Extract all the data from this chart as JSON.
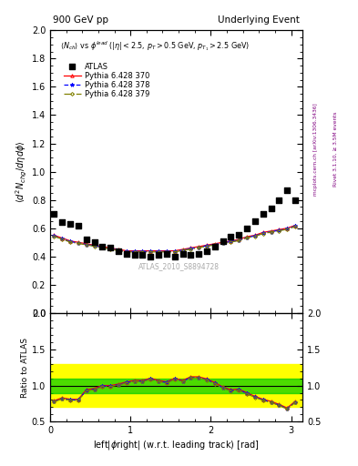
{
  "title_left": "900 GeV pp",
  "title_right": "Underlying Event",
  "annotation": "ATLAS_2010_S8894728",
  "subtitle": "$\\langle N_{ch}\\rangle$ vs $\\phi^{lead}$ ($|\\eta| < 2.5$, $p_T > 0.5$ GeV, $p_{T_1} > 2.5$ GeV)",
  "ylabel_main": "$\\langle d^2 N_{chg}/d\\eta d\\phi\\rangle$",
  "ylabel_ratio": "Ratio to ATLAS",
  "xlabel": "left|$\\phi$right| (w.r.t. leading track) [rad]",
  "right_label": "Rivet 3.1.10, ≥ 3.5M events",
  "right_label2": "mcplots.cern.ch [arXiv:1306.3436]",
  "xlim": [
    0,
    3.14159
  ],
  "ylim_main": [
    0.0,
    2.0
  ],
  "ylim_ratio": [
    0.5,
    2.0
  ],
  "atlas_x": [
    0.05,
    0.15,
    0.25,
    0.35,
    0.45,
    0.55,
    0.65,
    0.75,
    0.85,
    0.95,
    1.05,
    1.15,
    1.25,
    1.35,
    1.45,
    1.55,
    1.65,
    1.75,
    1.85,
    1.95,
    2.05,
    2.15,
    2.25,
    2.35,
    2.45,
    2.55,
    2.65,
    2.75,
    2.85,
    2.95,
    3.05
  ],
  "atlas_y": [
    0.7,
    0.64,
    0.63,
    0.62,
    0.52,
    0.5,
    0.47,
    0.46,
    0.44,
    0.42,
    0.41,
    0.41,
    0.4,
    0.41,
    0.42,
    0.4,
    0.42,
    0.41,
    0.42,
    0.44,
    0.47,
    0.51,
    0.54,
    0.55,
    0.6,
    0.65,
    0.7,
    0.74,
    0.8,
    0.87,
    0.8
  ],
  "py370_x": [
    0.05,
    0.15,
    0.25,
    0.35,
    0.45,
    0.55,
    0.65,
    0.75,
    0.85,
    0.95,
    1.05,
    1.15,
    1.25,
    1.35,
    1.45,
    1.55,
    1.65,
    1.75,
    1.85,
    1.95,
    2.05,
    2.15,
    2.25,
    2.35,
    2.45,
    2.55,
    2.65,
    2.75,
    2.85,
    2.95,
    3.05
  ],
  "py370_y": [
    0.55,
    0.53,
    0.51,
    0.5,
    0.49,
    0.48,
    0.47,
    0.46,
    0.45,
    0.44,
    0.44,
    0.44,
    0.44,
    0.44,
    0.44,
    0.44,
    0.45,
    0.46,
    0.47,
    0.48,
    0.49,
    0.5,
    0.51,
    0.52,
    0.54,
    0.55,
    0.57,
    0.58,
    0.59,
    0.6,
    0.62
  ],
  "py378_x": [
    0.05,
    0.15,
    0.25,
    0.35,
    0.45,
    0.55,
    0.65,
    0.75,
    0.85,
    0.95,
    1.05,
    1.15,
    1.25,
    1.35,
    1.45,
    1.55,
    1.65,
    1.75,
    1.85,
    1.95,
    2.05,
    2.15,
    2.25,
    2.35,
    2.45,
    2.55,
    2.65,
    2.75,
    2.85,
    2.95,
    3.05
  ],
  "py378_y": [
    0.545,
    0.525,
    0.505,
    0.495,
    0.485,
    0.475,
    0.465,
    0.455,
    0.445,
    0.435,
    0.435,
    0.435,
    0.435,
    0.435,
    0.435,
    0.435,
    0.445,
    0.455,
    0.465,
    0.475,
    0.485,
    0.495,
    0.505,
    0.515,
    0.535,
    0.545,
    0.565,
    0.575,
    0.585,
    0.595,
    0.615
  ],
  "py379_x": [
    0.05,
    0.15,
    0.25,
    0.35,
    0.45,
    0.55,
    0.65,
    0.75,
    0.85,
    0.95,
    1.05,
    1.15,
    1.25,
    1.35,
    1.45,
    1.55,
    1.65,
    1.75,
    1.85,
    1.95,
    2.05,
    2.15,
    2.25,
    2.35,
    2.45,
    2.55,
    2.65,
    2.75,
    2.85,
    2.95,
    3.05
  ],
  "py379_y": [
    0.542,
    0.522,
    0.502,
    0.492,
    0.482,
    0.472,
    0.462,
    0.452,
    0.442,
    0.432,
    0.432,
    0.432,
    0.432,
    0.432,
    0.432,
    0.432,
    0.442,
    0.452,
    0.462,
    0.472,
    0.482,
    0.492,
    0.502,
    0.512,
    0.532,
    0.542,
    0.562,
    0.572,
    0.582,
    0.592,
    0.612
  ],
  "ratio370_y": [
    0.79,
    0.83,
    0.81,
    0.81,
    0.94,
    0.96,
    1.0,
    1.0,
    1.02,
    1.05,
    1.07,
    1.07,
    1.1,
    1.07,
    1.05,
    1.1,
    1.07,
    1.12,
    1.12,
    1.09,
    1.04,
    0.98,
    0.94,
    0.95,
    0.9,
    0.85,
    0.81,
    0.78,
    0.74,
    0.69,
    0.78
  ],
  "ratio378_y": [
    0.78,
    0.82,
    0.8,
    0.8,
    0.93,
    0.95,
    0.99,
    0.99,
    1.01,
    1.04,
    1.06,
    1.06,
    1.09,
    1.06,
    1.04,
    1.09,
    1.06,
    1.11,
    1.11,
    1.08,
    1.03,
    0.97,
    0.93,
    0.94,
    0.89,
    0.84,
    0.8,
    0.77,
    0.73,
    0.68,
    0.77
  ],
  "ratio379_y": [
    0.775,
    0.815,
    0.795,
    0.795,
    0.925,
    0.945,
    0.985,
    0.985,
    1.005,
    1.035,
    1.055,
    1.055,
    1.085,
    1.055,
    1.035,
    1.085,
    1.055,
    1.105,
    1.105,
    1.075,
    1.025,
    0.965,
    0.925,
    0.935,
    0.885,
    0.835,
    0.795,
    0.765,
    0.725,
    0.675,
    0.765
  ],
  "color_370": "#ff0000",
  "color_378": "#0000ff",
  "color_379": "#808000",
  "color_atlas": "#000000",
  "band_green_inner": 0.1,
  "band_yellow_outer": 0.3,
  "legend_labels": [
    "ATLAS",
    "Pythia 6.428 370",
    "Pythia 6.428 378",
    "Pythia 6.428 379"
  ]
}
